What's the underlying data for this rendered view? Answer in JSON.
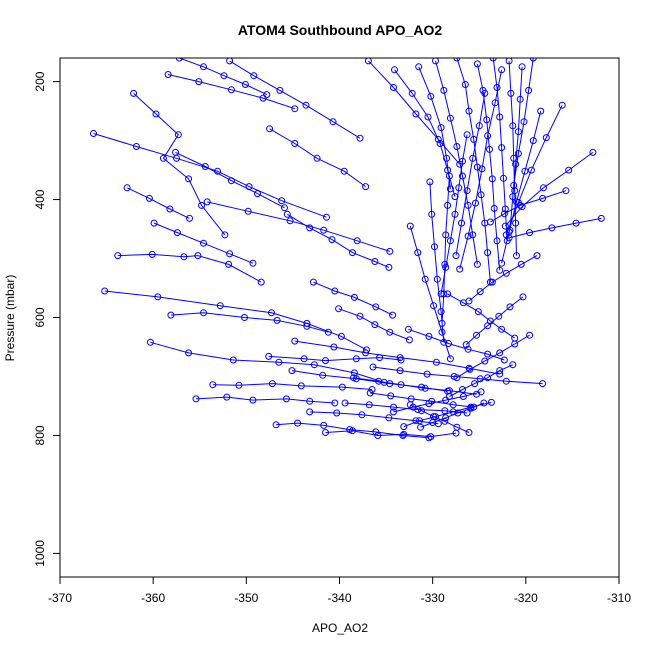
{
  "chart_data": {
    "type": "scatter",
    "title": "ATOM4 Southbound APO_AO2",
    "xlabel": "APO_AO2",
    "ylabel": "Pressure (mbar)",
    "xlim": [
      -370,
      -310
    ],
    "ylim": [
      1040,
      160
    ],
    "y_inverted": true,
    "x_ticks": [
      "-370",
      "-360",
      "-350",
      "-340",
      "-330",
      "-320",
      "-310"
    ],
    "y_ticks": [
      "200",
      "400",
      "600",
      "800",
      "1000"
    ],
    "grid": false,
    "legend": "none",
    "colors": {
      "series": "#0000ff",
      "axis": "#000000"
    },
    "series": [
      {
        "x": [
          -362.1,
          -359.7,
          -357.3,
          -358.9,
          -356.2,
          -354.8,
          -352.3
        ],
        "y": [
          220,
          255,
          290,
          330,
          365,
          410,
          460
        ]
      },
      {
        "x": [
          -366.4,
          -361.8,
          -357.5,
          -353.1,
          -349.7,
          -346.2,
          -341.4
        ],
        "y": [
          288,
          310,
          330,
          352,
          378,
          402,
          430
        ]
      },
      {
        "x": [
          -363.8,
          -360.1,
          -356.7,
          -355.2,
          -351.9,
          -348.4
        ],
        "y": [
          495,
          493,
          497,
          495,
          510,
          540
        ]
      },
      {
        "x": [
          -365.2,
          -359.5,
          -352.8,
          -347.3,
          -343.5,
          -339.8,
          -337.1
        ],
        "y": [
          555,
          565,
          580,
          592,
          610,
          632,
          655
        ]
      },
      {
        "x": [
          -360.3,
          -356.2,
          -351.4,
          -346.5,
          -342.7,
          -338.4,
          -335.2
        ],
        "y": [
          642,
          660,
          672,
          676,
          680,
          694,
          710
        ]
      },
      {
        "x": [
          -355.4,
          -352.1,
          -349.3,
          -345.7,
          -343.2,
          -340.5
        ],
        "y": [
          738,
          735,
          740,
          738,
          742,
          745
        ]
      },
      {
        "x": [
          -353.6,
          -350.8,
          -347.2,
          -344.1,
          -339.7,
          -336.5
        ],
        "y": [
          714,
          715,
          712,
          716,
          718,
          722
        ]
      },
      {
        "x": [
          -358.1,
          -354.6,
          -350.2,
          -346.7,
          -343.5,
          -341.2
        ],
        "y": [
          596,
          592,
          600,
          605,
          615,
          625
        ]
      },
      {
        "x": [
          -347.6,
          -343.8,
          -341.5,
          -338.2,
          -335.7,
          -333.4
        ],
        "y": [
          666,
          670,
          673,
          670,
          668,
          672
        ]
      },
      {
        "x": [
          -346.8,
          -344.5,
          -341.7,
          -338.9,
          -336.1,
          -333.2,
          -330.4
        ],
        "y": [
          782,
          779,
          783,
          790,
          794,
          800,
          804
        ]
      },
      {
        "x": [
          -343.2,
          -340.3,
          -337.6,
          -334.7,
          -331.8,
          -329.4
        ],
        "y": [
          760,
          762,
          765,
          770,
          775,
          780
        ]
      },
      {
        "x": [
          -341.5,
          -338.6,
          -335.9,
          -333.1,
          -330.2,
          -327.5
        ],
        "y": [
          795,
          792,
          800,
          798,
          802,
          796
        ]
      },
      {
        "x": [
          -339.4,
          -336.8,
          -334.2,
          -331.6,
          -328.7,
          -326.3
        ],
        "y": [
          745,
          748,
          752,
          756,
          758,
          762
        ]
      },
      {
        "x": [
          -336.7,
          -334.5,
          -332.3,
          -330.1,
          -327.8,
          -325.6
        ],
        "y": [
          728,
          733,
          738,
          742,
          748,
          752
        ]
      },
      {
        "x": [
          -345.1,
          -341.8,
          -338.2,
          -334.6,
          -331.2,
          -328.4
        ],
        "y": [
          690,
          698,
          704,
          712,
          718,
          725
        ]
      },
      {
        "x": [
          -338.5,
          -335.8,
          -333.4,
          -330.8,
          -328.2,
          -325.3
        ],
        "y": [
          702,
          708,
          714,
          720,
          724,
          730
        ]
      },
      {
        "x": [
          -334.2,
          -332.1,
          -330.4,
          -328.6,
          -326.7,
          -324.8
        ],
        "y": [
          760,
          752,
          746,
          740,
          734,
          726
        ]
      },
      {
        "x": [
          -333.1,
          -331.4,
          -329.7,
          -327.8,
          -325.9,
          -323.7
        ],
        "y": [
          785,
          775,
          768,
          760,
          752,
          744
        ]
      },
      {
        "x": [
          -344.8,
          -340.6,
          -337.2,
          -333.5,
          -329.6,
          -326.1,
          -322.8
        ],
        "y": [
          640,
          650,
          660,
          668,
          676,
          686,
          696
        ]
      },
      {
        "x": [
          -336.4,
          -333.5,
          -330.6,
          -327.7,
          -324.9,
          -322.1,
          -318.2
        ],
        "y": [
          684,
          690,
          696,
          700,
          704,
          708,
          712
        ]
      },
      {
        "x": [
          -332.6,
          -330.4,
          -328.3,
          -326.2,
          -324.1,
          -322.3
        ],
        "y": [
          620,
          632,
          644,
          654,
          662,
          672
        ]
      },
      {
        "x": [
          -328.4,
          -326.7,
          -325.1,
          -323.8,
          -322.6,
          -321.2
        ],
        "y": [
          560,
          575,
          590,
          606,
          620,
          635
        ]
      },
      {
        "x": [
          -354.2,
          -349.8,
          -345.3,
          -341.7,
          -338.1,
          -334.6
        ],
        "y": [
          404,
          420,
          436,
          452,
          470,
          488
        ]
      },
      {
        "x": [
          -358.4,
          -355.1,
          -351.6,
          -348.2,
          -344.8
        ],
        "y": [
          188,
          200,
          214,
          228,
          246
        ]
      },
      {
        "x": [
          -357.2,
          -354.6,
          -352.4,
          -350.1,
          -347.8
        ],
        "y": [
          160,
          175,
          190,
          205,
          222
        ]
      },
      {
        "x": [
          -351.8,
          -349.2,
          -346.4,
          -343.6,
          -340.7,
          -337.8
        ],
        "y": [
          165,
          190,
          215,
          240,
          268,
          296
        ]
      },
      {
        "x": [
          -347.5,
          -344.8,
          -342.4,
          -339.5,
          -337.2
        ],
        "y": [
          280,
          305,
          330,
          352,
          378
        ]
      },
      {
        "x": [
          -345.6,
          -343.2,
          -340.8,
          -338.6,
          -336.2,
          -334.7
        ],
        "y": [
          425,
          448,
          468,
          490,
          505,
          515
        ]
      },
      {
        "x": [
          -342.8,
          -340.5,
          -338.4,
          -336.1,
          -334.3
        ],
        "y": [
          540,
          555,
          566,
          582,
          596
        ]
      },
      {
        "x": [
          -340.1,
          -337.8,
          -336.2,
          -334.6,
          -332.5
        ],
        "y": [
          585,
          598,
          612,
          625,
          638
        ]
      },
      {
        "x": [
          -336.9,
          -334.2,
          -331.8,
          -329.4,
          -327.1
        ],
        "y": [
          165,
          210,
          255,
          298,
          340
        ]
      },
      {
        "x": [
          -334.1,
          -332.2,
          -330.5,
          -329.2,
          -328.4,
          -327.6
        ],
        "y": [
          180,
          220,
          260,
          305,
          350,
          395
        ]
      },
      {
        "x": [
          -331.5,
          -330.2,
          -329.1,
          -328.5,
          -328.1
        ],
        "y": [
          175,
          225,
          278,
          330,
          382
        ]
      },
      {
        "x": [
          -329.7,
          -328.8,
          -328.1,
          -327.4,
          -326.8,
          -326.2,
          -325.7,
          -325.2
        ],
        "y": [
          165,
          215,
          262,
          310,
          360,
          410,
          460,
          510
        ]
      },
      {
        "x": [
          -327.4,
          -326.5,
          -326.1,
          -325.6,
          -325.2,
          -324.8,
          -324.4,
          -324.1,
          -323.8
        ],
        "y": [
          160,
          205,
          250,
          298,
          345,
          392,
          440,
          490,
          540
        ]
      },
      {
        "x": [
          -325.2,
          -324.6,
          -324.2,
          -323.9,
          -323.6,
          -323.4,
          -323.1,
          -322.8
        ],
        "y": [
          170,
          215,
          265,
          315,
          365,
          415,
          470,
          520
        ]
      },
      {
        "x": [
          -323.5,
          -323.1,
          -322.8,
          -322.6,
          -322.4,
          -322.2,
          -322.0
        ],
        "y": [
          160,
          210,
          260,
          312,
          364,
          416,
          470
        ]
      },
      {
        "x": [
          -321.8,
          -321.6,
          -321.4,
          -321.3,
          -321.2,
          -321.1,
          -321.0
        ],
        "y": [
          165,
          220,
          275,
          330,
          385,
          440,
          495
        ]
      },
      {
        "x": [
          -320.4,
          -320.6,
          -320.8,
          -321.1,
          -321.4,
          -321.7
        ],
        "y": [
          175,
          230,
          285,
          340,
          395,
          452
        ]
      },
      {
        "x": [
          -319.2,
          -319.7,
          -320.2,
          -320.8,
          -321.3
        ],
        "y": [
          160,
          215,
          268,
          322,
          376
        ]
      },
      {
        "x": [
          -322.6,
          -323.3,
          -324.1,
          -324.7,
          -325.4,
          -326.2,
          -327.1
        ],
        "y": [
          180,
          236,
          292,
          348,
          406,
          462,
          518
        ]
      },
      {
        "x": [
          -324.4,
          -325.0,
          -325.7,
          -326.3,
          -326.9,
          -327.5
        ],
        "y": [
          220,
          275,
          330,
          385,
          440,
          495
        ]
      },
      {
        "x": [
          -326.3,
          -326.8,
          -327.2,
          -327.6,
          -328.1,
          -328.6,
          -329.1
        ],
        "y": [
          290,
          335,
          380,
          425,
          470,
          515,
          560
        ]
      },
      {
        "x": [
          -328.2,
          -328.4,
          -328.6,
          -328.7,
          -328.8,
          -329.0
        ],
        "y": [
          360,
          410,
          460,
          510,
          560,
          610
        ]
      },
      {
        "x": [
          -330.3,
          -330.1,
          -329.8,
          -329.5,
          -329.1,
          -328.8
        ],
        "y": [
          370,
          425,
          480,
          535,
          590,
          642
        ]
      },
      {
        "x": [
          -332.4,
          -331.6,
          -330.8,
          -329.9,
          -329.0,
          -328.1
        ],
        "y": [
          445,
          490,
          535,
          580,
          625,
          670
        ]
      },
      {
        "x": [
          -318.4,
          -319.2,
          -320.1,
          -321.0,
          -321.8,
          -322.6
        ],
        "y": [
          250,
          300,
          352,
          404,
          455,
          508
        ]
      },
      {
        "x": [
          -316.1,
          -317.8,
          -319.4,
          -320.8,
          -322.1
        ],
        "y": [
          240,
          295,
          350,
          405,
          460
        ]
      },
      {
        "x": [
          -312.8,
          -315.4,
          -318.1,
          -320.4,
          -322.2
        ],
        "y": [
          320,
          350,
          380,
          412,
          445
        ]
      },
      {
        "x": [
          -311.9,
          -314.6,
          -317.2,
          -319.6,
          -321.8
        ],
        "y": [
          432,
          440,
          448,
          456,
          465
        ]
      },
      {
        "x": [
          -315.7,
          -318.2,
          -320.6,
          -322.3,
          -323.8
        ],
        "y": [
          385,
          398,
          410,
          424,
          438
        ]
      },
      {
        "x": [
          -318.8,
          -320.5,
          -322.1,
          -323.6,
          -324.9,
          -326.1
        ],
        "y": [
          495,
          510,
          525,
          540,
          556,
          572
        ]
      },
      {
        "x": [
          -320.3,
          -321.7,
          -322.9,
          -324.1,
          -325.3,
          -326.4
        ],
        "y": [
          565,
          582,
          598,
          614,
          630,
          646
        ]
      },
      {
        "x": [
          -319.6,
          -321.2,
          -322.8,
          -324.4,
          -326.0,
          -327.4
        ],
        "y": [
          630,
          645,
          660,
          674,
          688,
          702
        ]
      },
      {
        "x": [
          -321.4,
          -322.8,
          -324.1,
          -325.5,
          -326.8,
          -328.2
        ],
        "y": [
          680,
          690,
          702,
          712,
          722,
          734
        ]
      },
      {
        "x": [
          -326.1,
          -327.4,
          -328.7,
          -329.9,
          -331.2,
          -332.4
        ],
        "y": [
          795,
          786,
          776,
          768,
          758,
          748
        ]
      },
      {
        "x": [
          -324.5,
          -325.9,
          -327.3,
          -328.6,
          -330.0,
          -331.3
        ],
        "y": [
          745,
          754,
          762,
          770,
          778,
          786
        ]
      },
      {
        "x": [
          -357.6,
          -354.4,
          -351.6,
          -348.8,
          -345.9
        ],
        "y": [
          320,
          344,
          368,
          390,
          414
        ]
      },
      {
        "x": [
          -359.9,
          -357.4,
          -354.6,
          -351.8,
          -349.3
        ],
        "y": [
          440,
          456,
          474,
          492,
          508
        ]
      },
      {
        "x": [
          -362.8,
          -360.4,
          -358.2,
          -356.1
        ],
        "y": [
          380,
          398,
          416,
          432
        ]
      }
    ]
  }
}
